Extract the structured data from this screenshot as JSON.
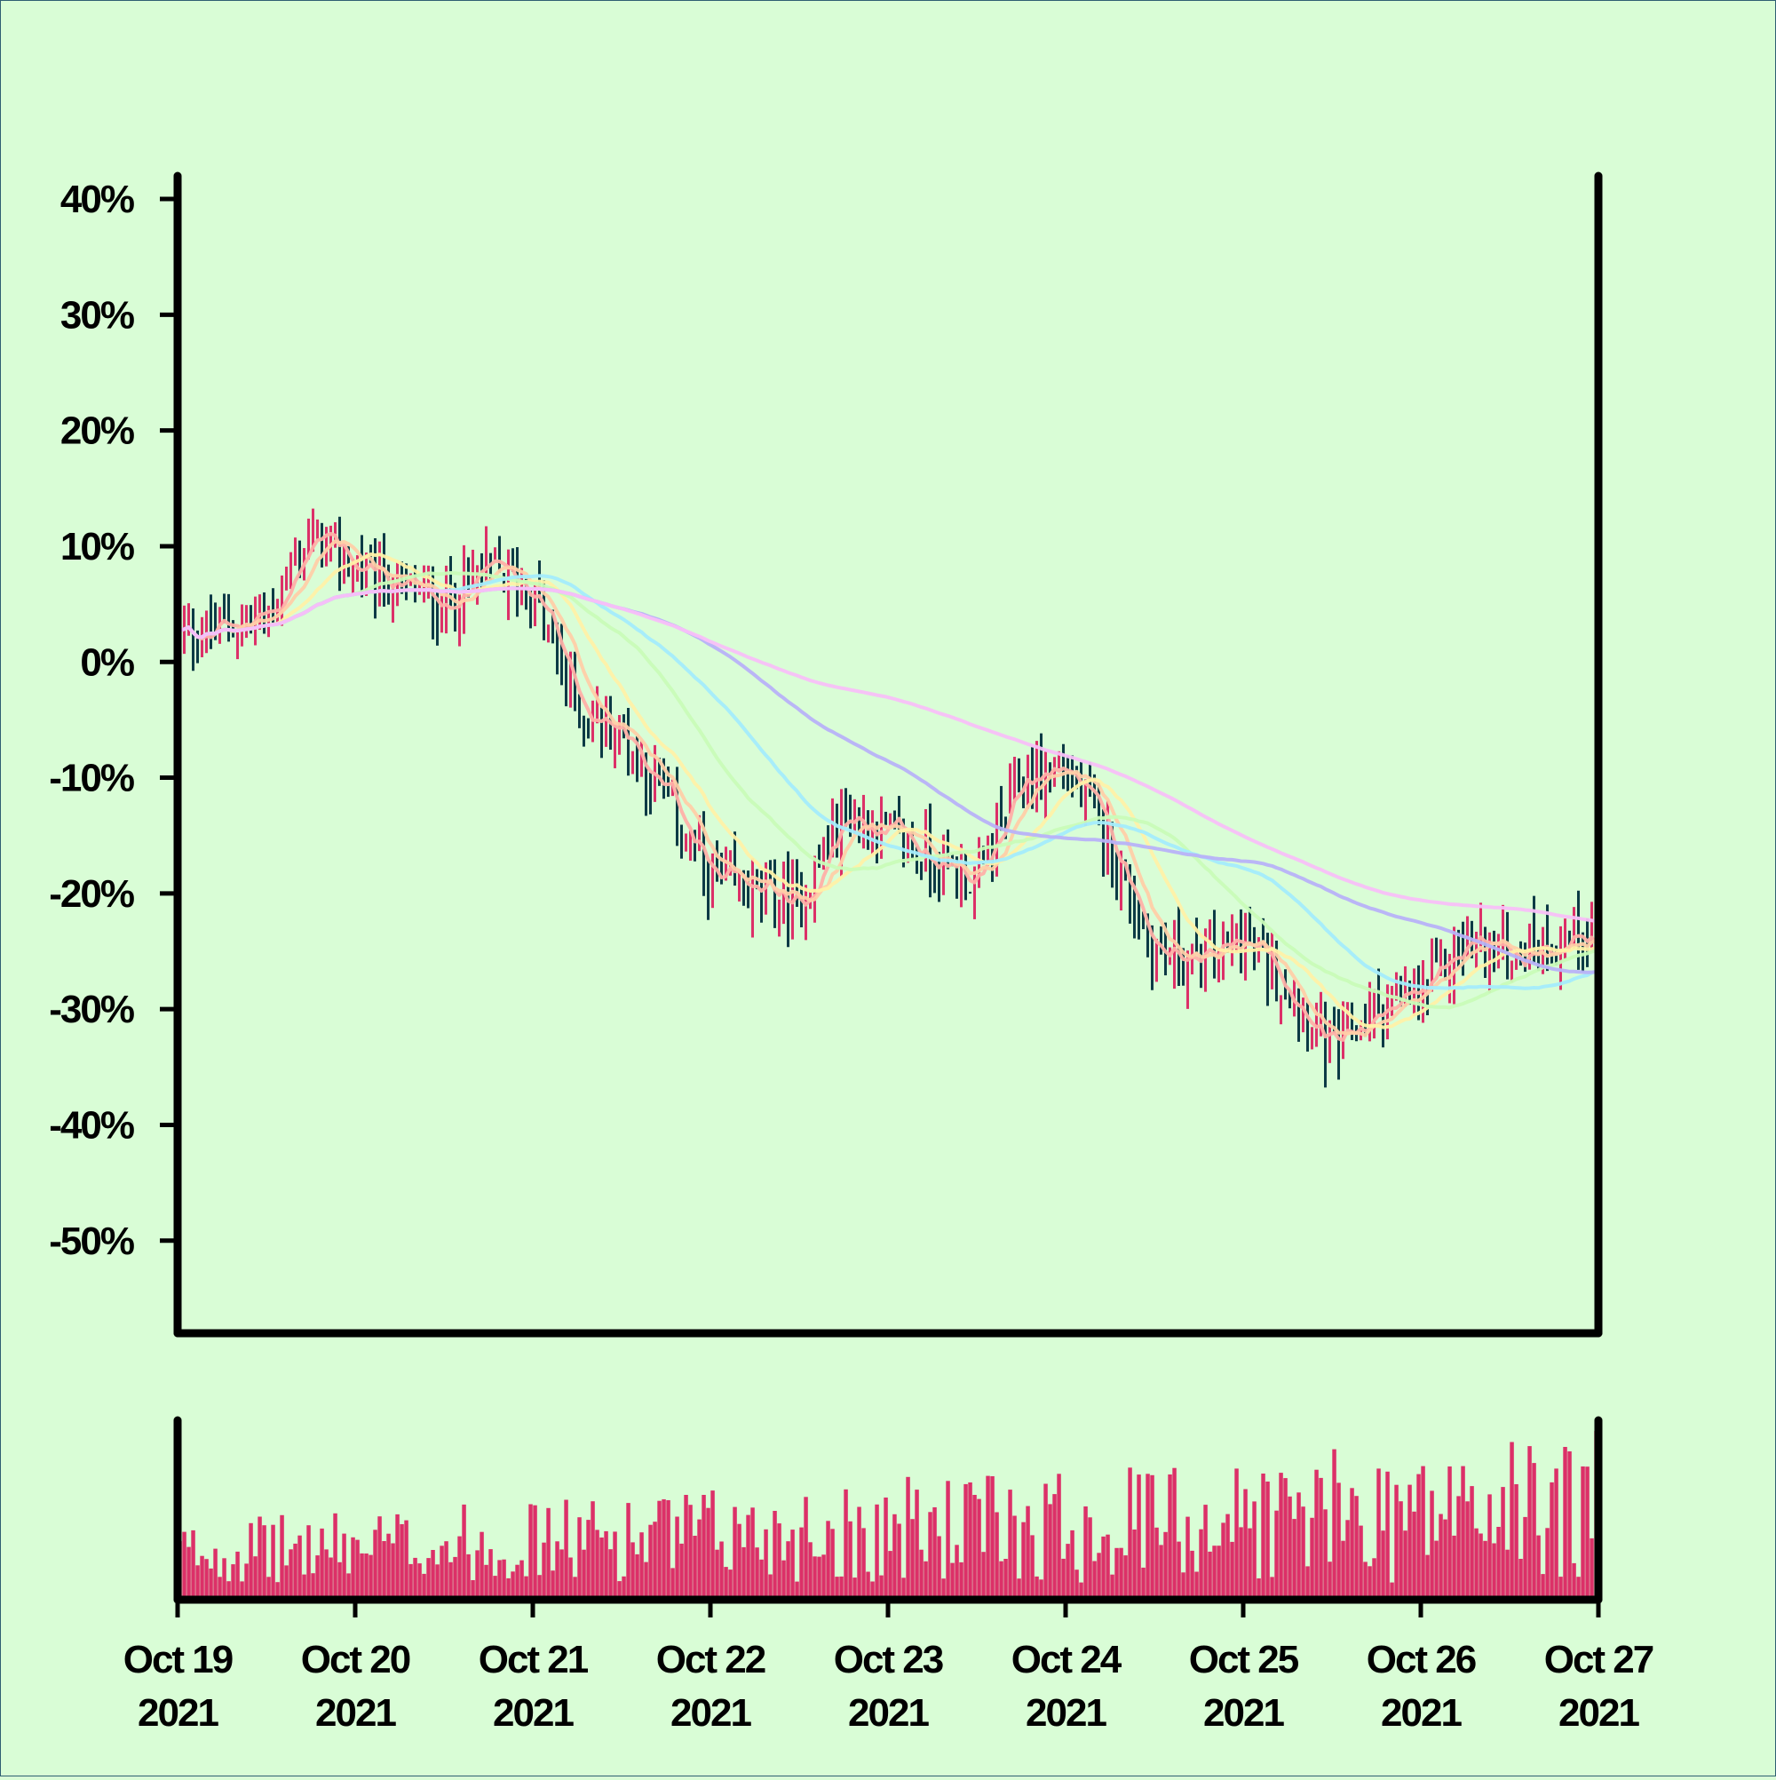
{
  "chart_data": {
    "type": "ohlc",
    "title": "",
    "xlabel": "",
    "ylabel": "",
    "y_unit": "%",
    "ylim": [
      -58,
      42
    ],
    "grid": false,
    "legend": "none",
    "y_ticks": [
      "40%",
      "30%",
      "20%",
      "10%",
      "0%",
      "-10%",
      "-20%",
      "-30%",
      "-40%",
      "-50%"
    ],
    "y_tick_values": [
      40,
      30,
      20,
      10,
      0,
      -10,
      -20,
      -30,
      -40,
      -50
    ],
    "x_ticks": [
      {
        "line1": "Oct 19",
        "line2": "2021"
      },
      {
        "line1": "Oct 20",
        "line2": "2021"
      },
      {
        "line1": "Oct 21",
        "line2": "2021"
      },
      {
        "line1": "Oct 22",
        "line2": "2021"
      },
      {
        "line1": "Oct 23",
        "line2": "2021"
      },
      {
        "line1": "Oct 24",
        "line2": "2021"
      },
      {
        "line1": "Oct 25",
        "line2": "2021"
      },
      {
        "line1": "Oct 26",
        "line2": "2021"
      },
      {
        "line1": "Oct 27",
        "line2": "2021"
      }
    ],
    "x_range": [
      "2021-10-19",
      "2021-10-27"
    ],
    "bars_per_day": 40,
    "price_path_anchors": [
      {
        "date": "2021-10-19 00:00",
        "close": 2
      },
      {
        "date": "2021-10-19 12:00",
        "close": 4
      },
      {
        "date": "2021-10-19 18:00",
        "close": 11
      },
      {
        "date": "2021-10-20 00:00",
        "close": 8
      },
      {
        "date": "2021-10-20 12:00",
        "close": 5
      },
      {
        "date": "2021-10-20 18:00",
        "close": 8
      },
      {
        "date": "2021-10-21 00:00",
        "close": 6
      },
      {
        "date": "2021-10-21 06:00",
        "close": -4
      },
      {
        "date": "2021-10-21 12:00",
        "close": -6
      },
      {
        "date": "2021-10-21 18:00",
        "close": -12
      },
      {
        "date": "2021-10-22 00:00",
        "close": -19
      },
      {
        "date": "2021-10-22 12:00",
        "close": -21
      },
      {
        "date": "2021-10-22 18:00",
        "close": -13
      },
      {
        "date": "2021-10-23 00:00",
        "close": -15
      },
      {
        "date": "2021-10-23 12:00",
        "close": -19
      },
      {
        "date": "2021-10-23 18:00",
        "close": -10
      },
      {
        "date": "2021-10-24 00:00",
        "close": -9
      },
      {
        "date": "2021-10-24 06:00",
        "close": -16
      },
      {
        "date": "2021-10-24 12:00",
        "close": -25
      },
      {
        "date": "2021-10-24 18:00",
        "close": -26
      },
      {
        "date": "2021-10-25 00:00",
        "close": -24
      },
      {
        "date": "2021-10-25 06:00",
        "close": -28
      },
      {
        "date": "2021-10-25 12:00",
        "close": -34
      },
      {
        "date": "2021-10-25 18:00",
        "close": -30
      },
      {
        "date": "2021-10-26 00:00",
        "close": -29
      },
      {
        "date": "2021-10-26 06:00",
        "close": -24
      },
      {
        "date": "2021-10-26 12:00",
        "close": -25
      },
      {
        "date": "2021-10-26 18:00",
        "close": -24
      },
      {
        "date": "2021-10-27 00:00",
        "close": -23
      }
    ],
    "up_color": "#dc3068",
    "down_color": "#0c3a45",
    "volume_color": "#dc3068",
    "moving_averages": [
      {
        "window": 5,
        "color": "#ffb0a8"
      },
      {
        "window": 10,
        "color": "#ffcfa8"
      },
      {
        "window": 20,
        "color": "#fff1a8"
      },
      {
        "window": 40,
        "color": "#c9fcb8"
      },
      {
        "window": 60,
        "color": "#a4ecfc"
      },
      {
        "window": 100,
        "color": "#b8b2f8"
      },
      {
        "window": 160,
        "color": "#f8c0f8"
      }
    ],
    "volume_panel": {
      "ylabel": "",
      "ticks": []
    }
  }
}
